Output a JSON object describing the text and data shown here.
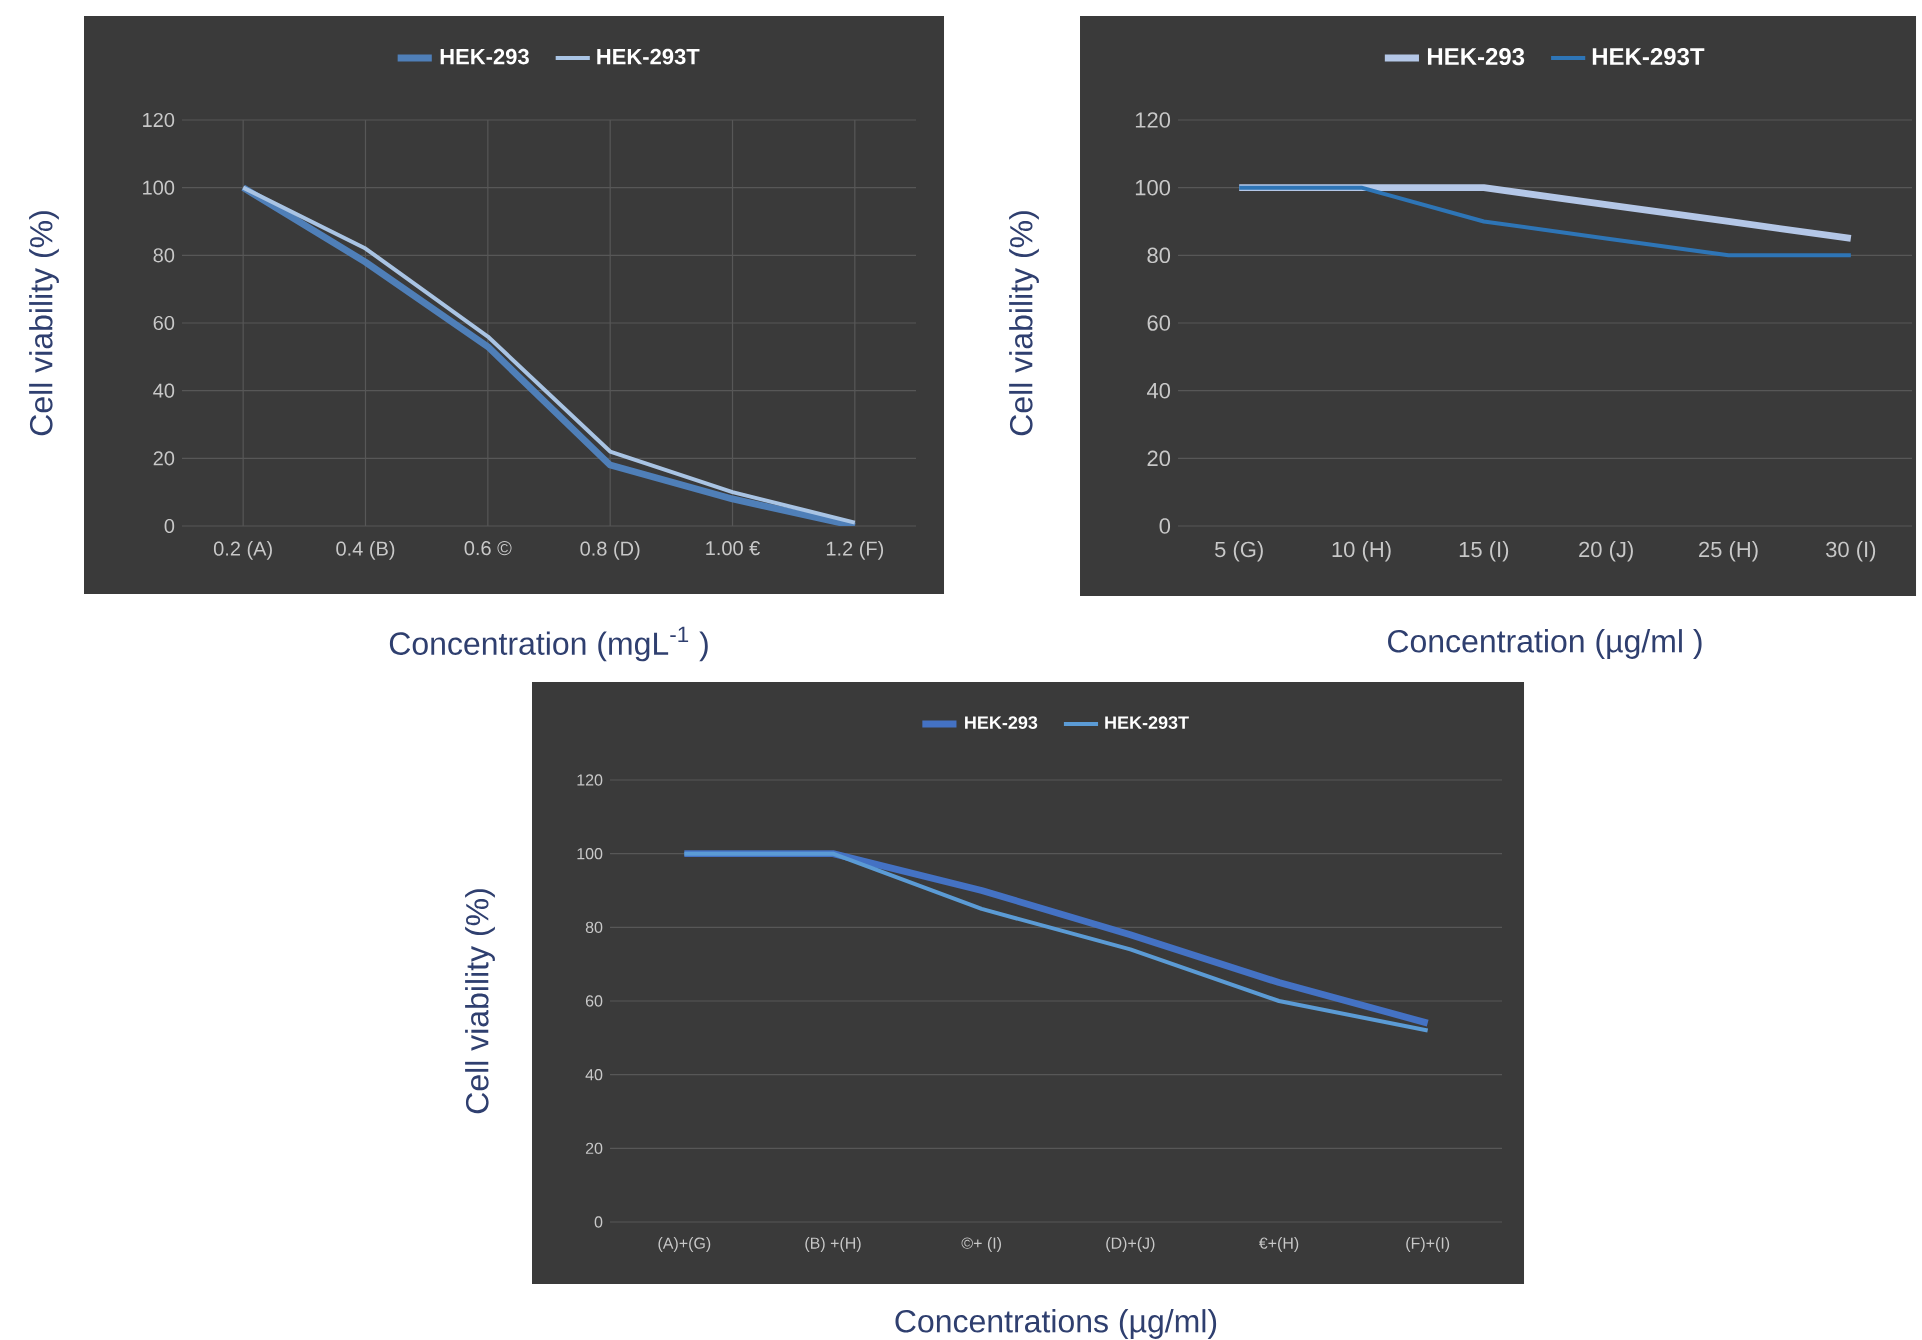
{
  "chart_data": [
    {
      "type": "line",
      "categories": [
        "0.2 (A)",
        "0.4 (B)",
        "0.6 ©",
        "0.8 (D)",
        "1.00 €",
        "1.2 (F)"
      ],
      "xlabel": "Concentration (mgL$^{-1}$ )",
      "ylabel": "Cell viability (%)",
      "ylim": [
        0,
        120
      ],
      "yticks": [
        0,
        20,
        40,
        60,
        80,
        100,
        120
      ],
      "grid": true,
      "legend": "top",
      "series": [
        {
          "name": "HEK-293",
          "color": "#4f7fb8",
          "values": [
            100,
            78,
            53,
            18,
            8,
            0
          ]
        },
        {
          "name": "HEK-293T",
          "color": "#a9c4e4",
          "values": [
            100,
            82,
            56,
            22,
            10,
            1
          ]
        }
      ]
    },
    {
      "type": "line",
      "categories": [
        "5 (G)",
        "10 (H)",
        "15 (I)",
        "20 (J)",
        "25 (H)",
        "30 (I)"
      ],
      "xlabel": "Concentration (µg/ml )",
      "ylabel": "Cell viability (%)",
      "ylim": [
        0,
        120
      ],
      "yticks": [
        0,
        20,
        40,
        60,
        80,
        100,
        120
      ],
      "grid": "y",
      "legend": "top",
      "series": [
        {
          "name": "HEK-293",
          "color": "#b4c7e7",
          "values": [
            100,
            100,
            100,
            95,
            90,
            85
          ]
        },
        {
          "name": "HEK-293T",
          "color": "#2e75b6",
          "values": [
            100,
            100,
            90,
            85,
            80,
            80
          ]
        }
      ]
    },
    {
      "type": "line",
      "categories": [
        "(A)+(G)",
        "(B) +(H)",
        "©+ (I)",
        "(D)+(J)",
        "€+(H)",
        "(F)+(I)"
      ],
      "xlabel": "Concentrations (µg/ml)",
      "ylabel": "Cell viability (%)",
      "ylim": [
        0,
        120
      ],
      "yticks": [
        0,
        20,
        40,
        60,
        80,
        100,
        120
      ],
      "grid": "y",
      "legend": "top",
      "series": [
        {
          "name": "HEK-293",
          "color": "#4472c4",
          "values": [
            100,
            100,
            90,
            78,
            65,
            54
          ]
        },
        {
          "name": "HEK-293T",
          "color": "#5b9bd5",
          "values": [
            100,
            100,
            85,
            74,
            60,
            52
          ]
        }
      ]
    }
  ]
}
